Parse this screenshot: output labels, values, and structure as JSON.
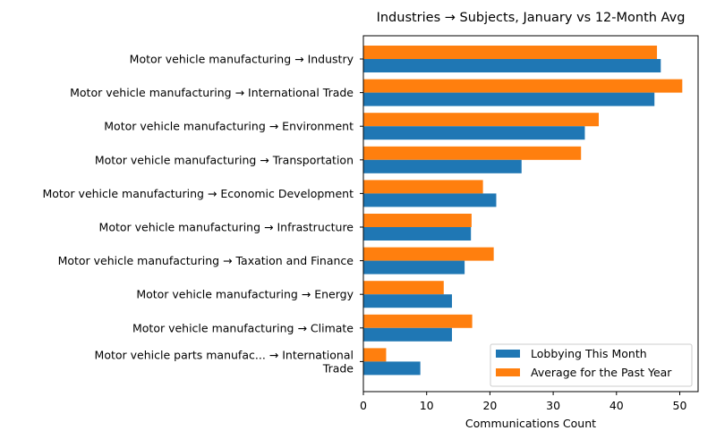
{
  "chart_data": {
    "type": "bar",
    "orientation": "horizontal",
    "title": "Industries → Subjects, January vs 12-Month Avg",
    "xlabel": "Communications Count",
    "ylabel": "",
    "xlim": [
      0,
      53
    ],
    "xticks": [
      0,
      10,
      20,
      30,
      40,
      50
    ],
    "grid": false,
    "legend_position": "lower-right",
    "categories": [
      "Motor vehicle manufacturing → Industry",
      "Motor vehicle manufacturing → International Trade",
      "Motor vehicle manufacturing → Environment",
      "Motor vehicle manufacturing → Transportation",
      "Motor vehicle manufacturing → Economic Development",
      "Motor vehicle manufacturing → Infrastructure",
      "Motor vehicle manufacturing → Taxation and Finance",
      "Motor vehicle manufacturing → Energy",
      "Motor vehicle manufacturing → Climate",
      "Motor vehicle parts manufac... → International\nTrade"
    ],
    "series": [
      {
        "name": "Lobbying This Month",
        "color": "#1f77b4",
        "values": [
          47,
          46,
          35,
          25,
          21,
          17,
          16,
          14,
          14,
          9
        ]
      },
      {
        "name": "Average for the Past Year",
        "color": "#ff7f0e",
        "values": [
          46.4,
          50.4,
          37.2,
          34.4,
          18.9,
          17.1,
          20.6,
          12.7,
          17.2,
          3.6
        ]
      }
    ]
  }
}
